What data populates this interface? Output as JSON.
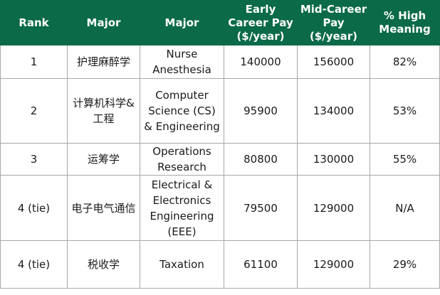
{
  "table": {
    "headers": {
      "rank": "Rank",
      "major_cn": "Major",
      "major_en": "Major",
      "early_pay": "Early Career Pay ($/year)",
      "mid_pay": "Mid-Career Pay ($/year)",
      "meaning": "% High Meaning"
    },
    "rows": [
      {
        "rank": "1",
        "major_cn": "护理麻醉学",
        "major_en": "Nurse Anesthesia",
        "early_pay": "140000",
        "mid_pay": "156000",
        "meaning": "82%"
      },
      {
        "rank": "2",
        "major_cn": "计算机科学&工程",
        "major_en": "Computer Science (CS) & Engineering",
        "early_pay": "95900",
        "mid_pay": "134000",
        "meaning": "53%"
      },
      {
        "rank": "3",
        "major_cn": "运筹学",
        "major_en": "Operations Research",
        "early_pay": "80800",
        "mid_pay": "130000",
        "meaning": "55%"
      },
      {
        "rank": "4 (tie)",
        "major_cn": "电子电气通信",
        "major_en": "Electrical & Electronics Engineering (EEE)",
        "early_pay": "79500",
        "mid_pay": "129000",
        "meaning": "N/A"
      },
      {
        "rank": "4 (tie)",
        "major_cn": "税收学",
        "major_en": "Taxation",
        "early_pay": "61100",
        "mid_pay": "129000",
        "meaning": "29%"
      }
    ]
  }
}
